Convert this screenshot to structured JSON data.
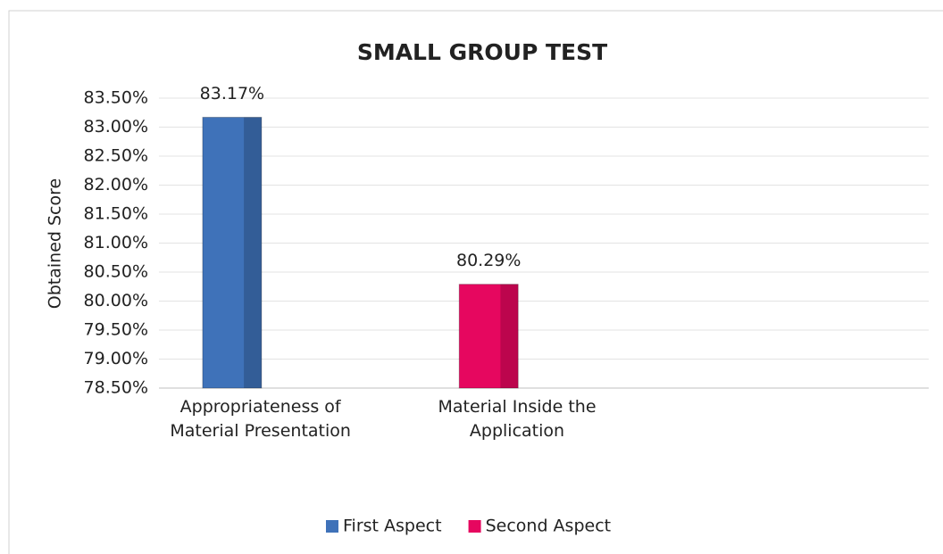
{
  "chart_data": {
    "type": "bar",
    "title": "SMALL GROUP TEST",
    "y_label": "Obtained Score",
    "categories": [
      "Appropriateness of Material Presentation",
      "Material Inside the Application",
      null
    ],
    "series": [
      {
        "name": "First Aspect",
        "color": "#3f72b9",
        "values": [
          83.17,
          null,
          null
        ],
        "value_labels": [
          "83.17%",
          null,
          null
        ]
      },
      {
        "name": "Second Aspect",
        "color": "#e6075f",
        "values": [
          null,
          80.29,
          null
        ],
        "value_labels": [
          null,
          "80.29%",
          null
        ]
      }
    ],
    "ylim": [
      78.5,
      83.5
    ],
    "yticks": [
      {
        "value": 78.5,
        "label": "78.50%"
      },
      {
        "value": 79,
        "label": "79.00%"
      },
      {
        "value": 79.5,
        "label": "79.50%"
      },
      {
        "value": 80,
        "label": "80.00%"
      },
      {
        "value": 80.5,
        "label": "80.50%"
      },
      {
        "value": 81,
        "label": "81.00%"
      },
      {
        "value": 81.5,
        "label": "81.50%"
      },
      {
        "value": 82,
        "label": "82.00%"
      },
      {
        "value": 82.5,
        "label": "82.50%"
      },
      {
        "value": 83,
        "label": "83.00%"
      },
      {
        "value": 83.5,
        "label": "83.50%"
      }
    ],
    "grid": true,
    "legend": "bottom"
  }
}
